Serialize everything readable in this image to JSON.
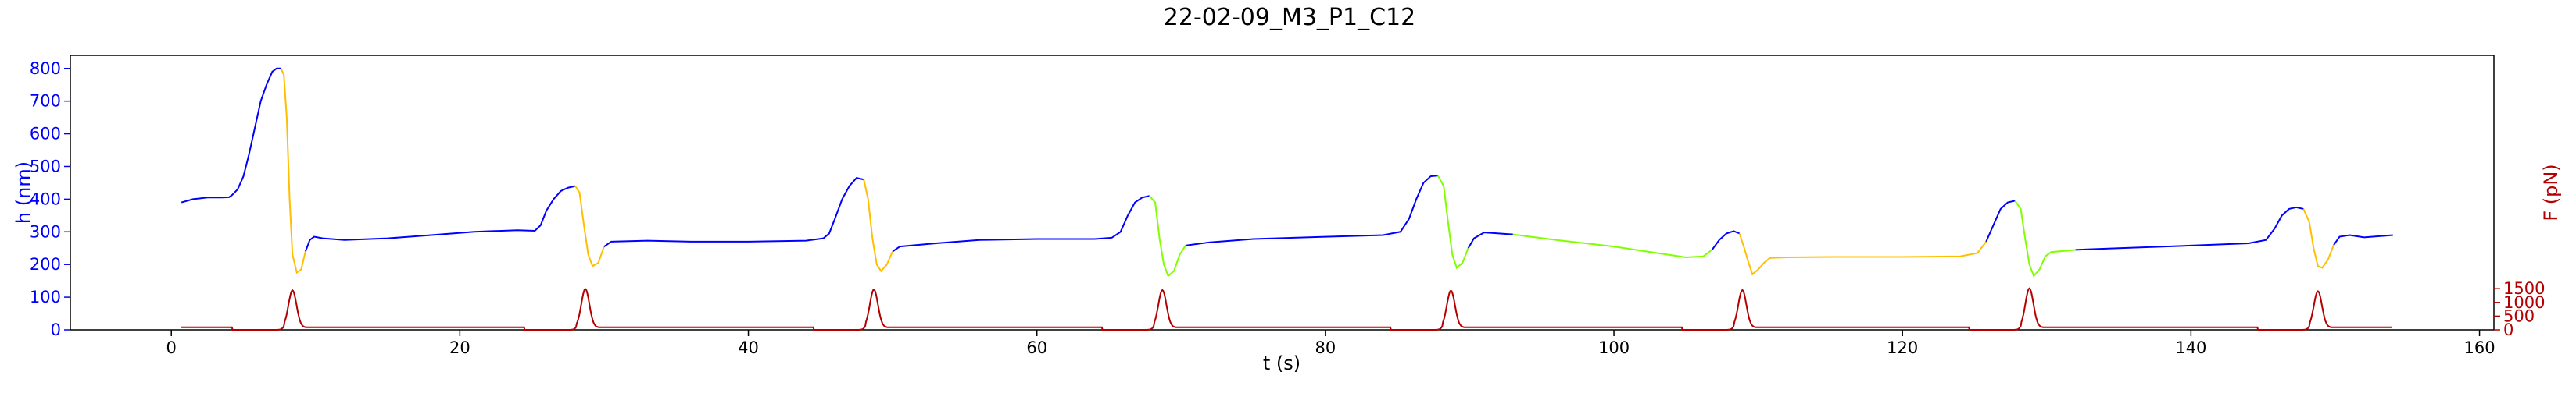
{
  "chart_data": {
    "type": "line",
    "title": "22-02-09_M3_P1_C12",
    "xlabel": "t (s)",
    "ylabel_left": "h (nm)",
    "ylabel_right": "F (pN)",
    "xlim": [
      -7,
      161
    ],
    "xticks": [
      0,
      20,
      40,
      60,
      80,
      100,
      120,
      140,
      160
    ],
    "ylim_left": [
      0,
      840
    ],
    "yticks_left": [
      0,
      100,
      200,
      300,
      400,
      500,
      600,
      700,
      800
    ],
    "ylim_right": [
      0,
      10000
    ],
    "yticks_right": [
      0,
      500,
      1000,
      1500
    ],
    "grid": false,
    "colors": {
      "h_baseline": "#0000ff",
      "h_compression": "#ffbf00",
      "h_compression_alt": "#7fff00",
      "force": "#b30000",
      "left_axis": "#0000ff",
      "right_axis": "#b30000"
    },
    "series": [
      {
        "axis": "left",
        "data": [
          [
            0.7,
            390
          ],
          [
            1.5,
            400
          ],
          [
            2.5,
            405
          ],
          [
            3.5,
            405
          ],
          [
            4.0,
            406
          ],
          [
            4.2,
            412
          ],
          [
            4.6,
            430
          ],
          [
            5.0,
            470
          ],
          [
            5.4,
            540
          ],
          [
            5.8,
            620
          ],
          [
            6.2,
            700
          ],
          [
            6.6,
            750
          ],
          [
            7.0,
            790
          ],
          [
            7.3,
            800
          ],
          [
            7.6,
            800
          ],
          [
            7.8,
            780
          ],
          [
            8.0,
            650
          ],
          [
            8.2,
            400
          ],
          [
            8.4,
            230
          ],
          [
            8.7,
            175
          ],
          [
            9.0,
            185
          ],
          [
            9.3,
            240
          ],
          [
            9.6,
            275
          ],
          [
            9.9,
            285
          ],
          [
            10.5,
            280
          ],
          [
            12,
            275
          ],
          [
            15,
            280
          ],
          [
            18,
            290
          ],
          [
            21,
            300
          ],
          [
            24,
            305
          ],
          [
            25.2,
            303
          ],
          [
            25.6,
            320
          ],
          [
            26.0,
            365
          ],
          [
            26.5,
            400
          ],
          [
            27.0,
            425
          ],
          [
            27.5,
            435
          ],
          [
            28.0,
            440
          ],
          [
            28.3,
            420
          ],
          [
            28.6,
            320
          ],
          [
            28.9,
            230
          ],
          [
            29.2,
            195
          ],
          [
            29.6,
            205
          ],
          [
            30.0,
            255
          ],
          [
            30.5,
            270
          ],
          [
            33,
            273
          ],
          [
            36,
            270
          ],
          [
            40,
            270
          ],
          [
            44,
            273
          ],
          [
            45.2,
            280
          ],
          [
            45.6,
            295
          ],
          [
            46.0,
            340
          ],
          [
            46.5,
            400
          ],
          [
            47.0,
            440
          ],
          [
            47.5,
            465
          ],
          [
            48.0,
            460
          ],
          [
            48.3,
            400
          ],
          [
            48.6,
            280
          ],
          [
            48.9,
            200
          ],
          [
            49.2,
            180
          ],
          [
            49.6,
            200
          ],
          [
            50.0,
            240
          ],
          [
            50.5,
            255
          ],
          [
            53,
            265
          ],
          [
            56,
            275
          ],
          [
            60,
            278
          ],
          [
            64,
            278
          ],
          [
            65.2,
            282
          ],
          [
            65.8,
            300
          ],
          [
            66.3,
            350
          ],
          [
            66.8,
            390
          ],
          [
            67.3,
            405
          ],
          [
            67.8,
            410
          ],
          [
            68.2,
            390
          ],
          [
            68.5,
            280
          ],
          [
            68.8,
            200
          ],
          [
            69.1,
            165
          ],
          [
            69.5,
            180
          ],
          [
            69.9,
            230
          ],
          [
            70.3,
            258
          ],
          [
            72,
            268
          ],
          [
            75,
            278
          ],
          [
            80,
            285
          ],
          [
            84,
            290
          ],
          [
            85.2,
            300
          ],
          [
            85.8,
            340
          ],
          [
            86.3,
            400
          ],
          [
            86.8,
            450
          ],
          [
            87.3,
            470
          ],
          [
            87.8,
            472
          ],
          [
            88.2,
            440
          ],
          [
            88.5,
            330
          ],
          [
            88.8,
            230
          ],
          [
            89.1,
            190
          ],
          [
            89.5,
            205
          ],
          [
            89.9,
            250
          ],
          [
            90.3,
            280
          ],
          [
            91,
            298
          ],
          [
            93,
            292
          ],
          [
            96,
            275
          ],
          [
            100,
            255
          ],
          [
            103,
            235
          ],
          [
            105,
            222
          ],
          [
            106.2,
            225
          ],
          [
            106.8,
            245
          ],
          [
            107.3,
            275
          ],
          [
            107.8,
            295
          ],
          [
            108.3,
            302
          ],
          [
            108.7,
            295
          ],
          [
            109.0,
            255
          ],
          [
            109.3,
            210
          ],
          [
            109.6,
            170
          ],
          [
            110.0,
            185
          ],
          [
            110.4,
            205
          ],
          [
            110.8,
            220
          ],
          [
            112,
            222
          ],
          [
            115,
            223
          ],
          [
            120,
            223
          ],
          [
            124,
            225
          ],
          [
            125.2,
            235
          ],
          [
            125.8,
            270
          ],
          [
            126.3,
            320
          ],
          [
            126.8,
            370
          ],
          [
            127.3,
            390
          ],
          [
            127.8,
            395
          ],
          [
            128.2,
            370
          ],
          [
            128.5,
            280
          ],
          [
            128.8,
            200
          ],
          [
            129.1,
            165
          ],
          [
            129.5,
            185
          ],
          [
            129.9,
            225
          ],
          [
            130.3,
            238
          ],
          [
            132,
            245
          ],
          [
            135,
            250
          ],
          [
            140,
            258
          ],
          [
            144,
            265
          ],
          [
            145.2,
            275
          ],
          [
            145.8,
            310
          ],
          [
            146.3,
            350
          ],
          [
            146.8,
            370
          ],
          [
            147.3,
            375
          ],
          [
            147.8,
            370
          ],
          [
            148.2,
            330
          ],
          [
            148.5,
            250
          ],
          [
            148.8,
            195
          ],
          [
            149.1,
            190
          ],
          [
            149.5,
            215
          ],
          [
            149.9,
            260
          ],
          [
            150.3,
            285
          ],
          [
            151,
            290
          ],
          [
            152,
            283
          ],
          [
            154,
            290
          ]
        ]
      },
      {
        "axis": "right",
        "peaks": [
          8.4,
          28.7,
          48.7,
          68.7,
          88.7,
          108.9,
          128.8,
          148.8
        ],
        "peak_heights": [
          1350,
          1400,
          1380,
          1360,
          1340,
          1360,
          1420,
          1320
        ]
      }
    ]
  }
}
